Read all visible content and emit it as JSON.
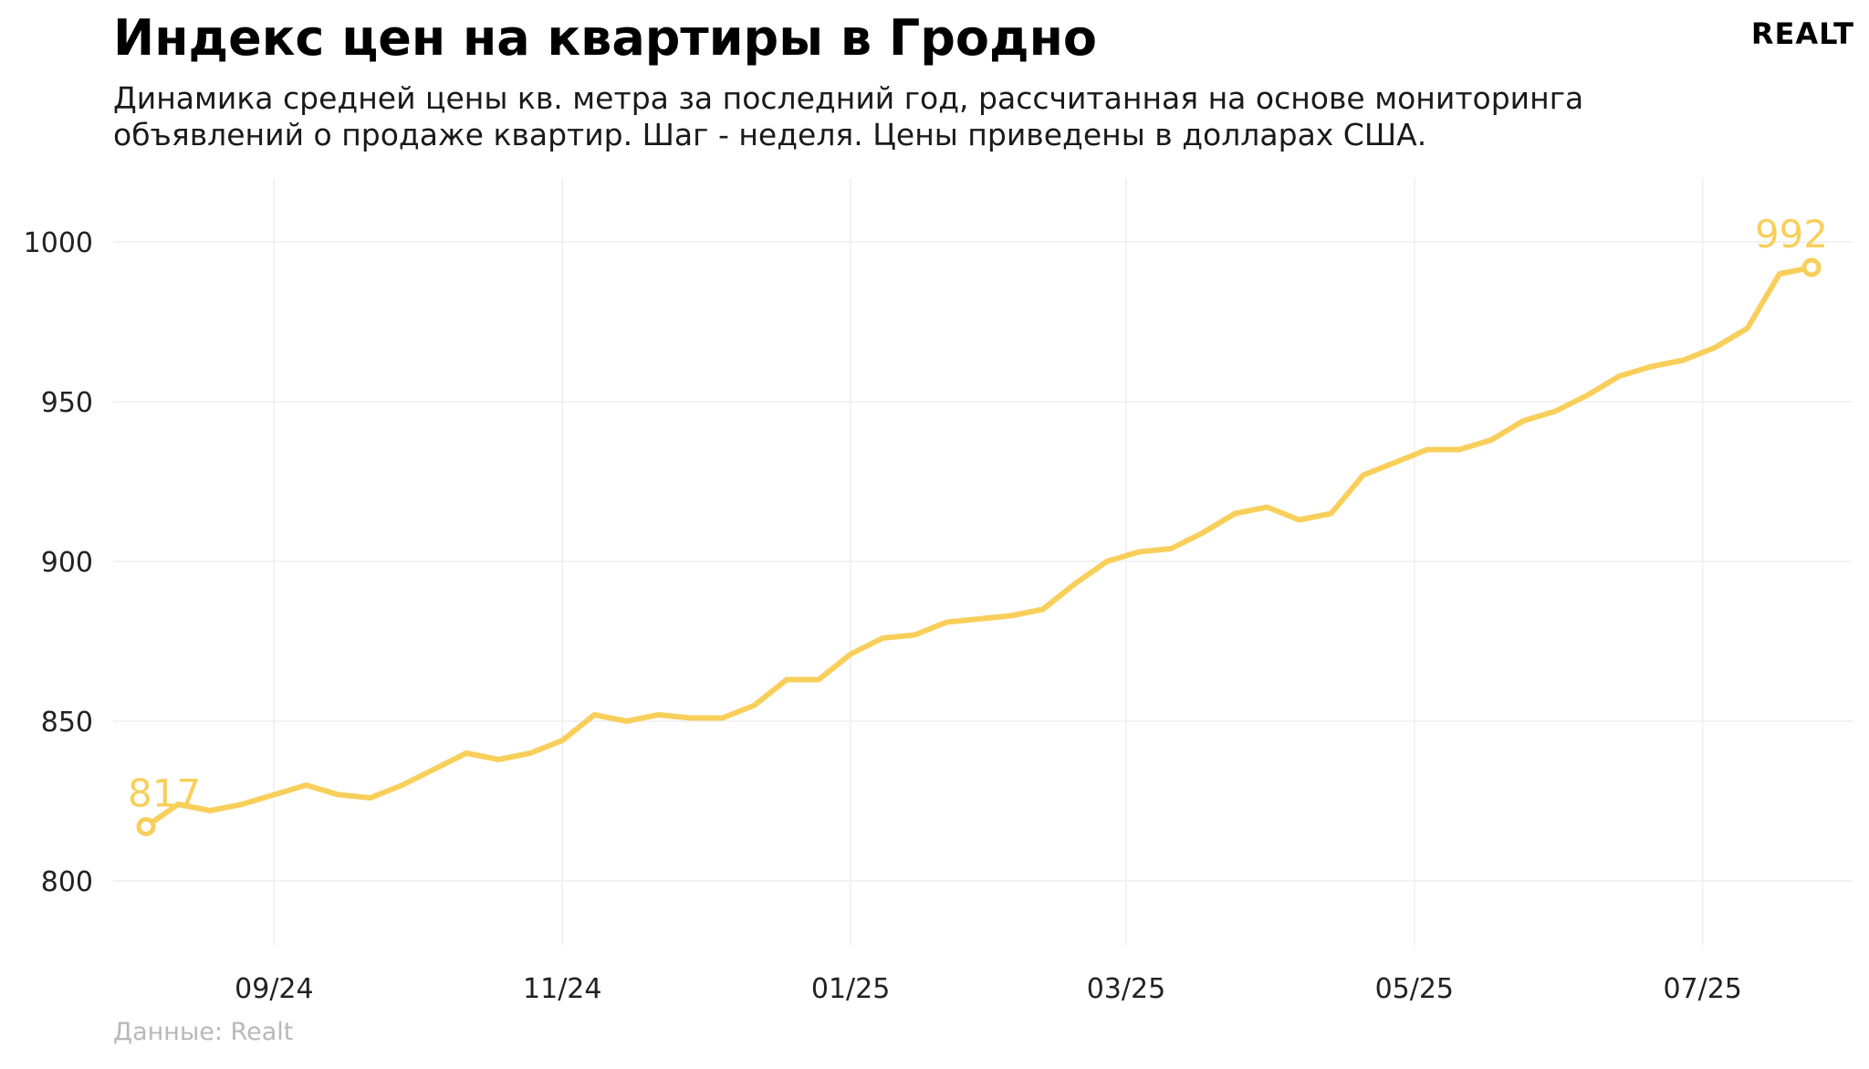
{
  "header": {
    "title": "Индекс цен на квартиры в Гродно",
    "subtitle": "Динамика средней цены кв. метра за последний год, рассчитанная на основе мониторинга объявлений о продаже квартир. Шаг - неделя. Цены приведены в долларах США.",
    "logo": "REALT"
  },
  "footer": {
    "source": "Данные: Realt"
  },
  "colors": {
    "line": "#f9cf5b",
    "grid": "#eeeeee",
    "text": "#222222"
  },
  "chart_data": {
    "type": "line",
    "title": "Индекс цен на квартиры в Гродно",
    "xlabel": "",
    "ylabel": "",
    "ylim": [
      780,
      1020
    ],
    "yticks": [
      800,
      850,
      900,
      950,
      1000
    ],
    "xticks": [
      {
        "label": "09/24",
        "week": 4
      },
      {
        "label": "11/24",
        "week": 13
      },
      {
        "label": "01/25",
        "week": 22
      },
      {
        "label": "03/25",
        "week": 30.6
      },
      {
        "label": "05/25",
        "week": 39.6
      },
      {
        "label": "07/25",
        "week": 48.6
      }
    ],
    "grid": true,
    "legend": "none",
    "series": [
      {
        "values": [
          817,
          824,
          822,
          824,
          827,
          830,
          827,
          826,
          830,
          835,
          840,
          838,
          840,
          844,
          852,
          850,
          852,
          851,
          851,
          855,
          863,
          863,
          871,
          876,
          877,
          881,
          882,
          883,
          885,
          893,
          900,
          903,
          904,
          909,
          915,
          917,
          913,
          915,
          927,
          931,
          935,
          935,
          938,
          944,
          947,
          952,
          958,
          961,
          963,
          967,
          973,
          990,
          992
        ]
      }
    ],
    "labels": {
      "first": "817",
      "last": "992"
    }
  }
}
